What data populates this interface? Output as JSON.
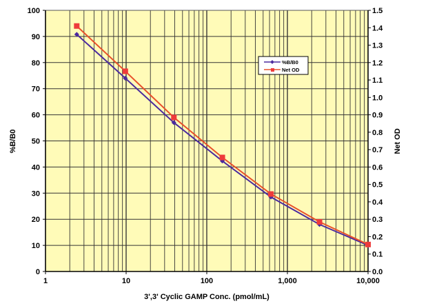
{
  "chart_data": {
    "type": "line",
    "title": "",
    "xlabel": "3',3' Cyclic GAMP Conc. (pmol/mL)",
    "ylabel": "%B/B0",
    "y2label": "Net OD",
    "xscale": "log",
    "xlim": [
      1,
      10000
    ],
    "ylim": [
      0,
      100
    ],
    "y2lim": [
      0,
      1.5
    ],
    "xticks": [
      1,
      10,
      100,
      1000,
      10000
    ],
    "xtick_labels": [
      "1",
      "10",
      "100",
      "1,000",
      "10,000"
    ],
    "yticks": [
      "0",
      "10",
      "20",
      "30",
      "40",
      "50",
      "60",
      "70",
      "80",
      "90",
      "100"
    ],
    "y2ticks": [
      "0.0",
      "0.1",
      "0.2",
      "0.3",
      "0.4",
      "0.5",
      "0.6",
      "0.7",
      "0.8",
      "0.9",
      "1.0",
      "1.1",
      "1.2",
      "1.3",
      "1.4",
      "1.5"
    ],
    "grid": true,
    "legend": "upper-right",
    "background": "#FFFBB8",
    "series": [
      {
        "name": "%B/B0",
        "axis": "left",
        "color": "#4B2A9E",
        "marker": "diamond",
        "x": [
          2.44,
          9.77,
          39.1,
          156,
          625,
          2500,
          10000
        ],
        "y": [
          90.8,
          74,
          57,
          42.3,
          28.5,
          18,
          10
        ]
      },
      {
        "name": "Net OD",
        "axis": "right",
        "color": "#E8502A",
        "marker_color": "#EE3B3B",
        "marker": "square",
        "x": [
          2.44,
          9.77,
          39.1,
          156,
          625,
          2500,
          10000
        ],
        "y": [
          1.41,
          1.15,
          0.885,
          0.655,
          0.445,
          0.285,
          0.155
        ]
      }
    ]
  }
}
